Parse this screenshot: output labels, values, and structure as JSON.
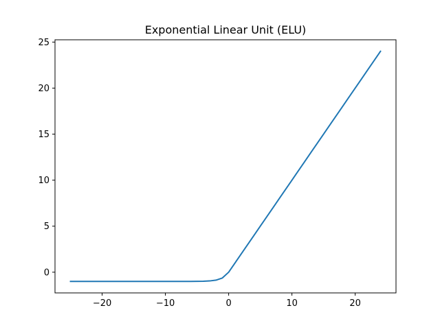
{
  "chart_data": {
    "type": "line",
    "title": "Exponential Linear Unit (ELU)",
    "xlabel": "",
    "ylabel": "",
    "xlim": [
      -27.45,
      26.45
    ],
    "ylim": [
      -2.25,
      25.25
    ],
    "xticks": [
      -20,
      -10,
      0,
      10,
      20
    ],
    "xtick_labels": [
      "−20",
      "−10",
      "0",
      "10",
      "20"
    ],
    "yticks": [
      0,
      5,
      10,
      15,
      20,
      25
    ],
    "ytick_labels": [
      "0",
      "5",
      "10",
      "15",
      "20",
      "25"
    ],
    "grid": false,
    "legend": "none",
    "series": [
      {
        "color": "#1f77b4",
        "x": [
          -25,
          -24,
          -23,
          -22,
          -21,
          -20,
          -19,
          -18,
          -17,
          -16,
          -15,
          -14,
          -13,
          -12,
          -11,
          -10,
          -9,
          -8,
          -7,
          -6,
          -5,
          -4,
          -3,
          -2,
          -1,
          0,
          1,
          2,
          3,
          4,
          5,
          6,
          7,
          8,
          9,
          10,
          11,
          12,
          13,
          14,
          15,
          16,
          17,
          18,
          19,
          20,
          21,
          22,
          23,
          24
        ],
        "y": [
          -1.0,
          -1.0,
          -1.0,
          -1.0,
          -1.0,
          -1.0,
          -1.0,
          -1.0,
          -1.0,
          -1.0,
          -1.0,
          -1.0,
          -1.0,
          -1.0,
          -1.0,
          -1.0,
          -0.9999,
          -0.9997,
          -0.9991,
          -0.9975,
          -0.9933,
          -0.9817,
          -0.9502,
          -0.8647,
          -0.6321,
          0,
          1,
          2,
          3,
          4,
          5,
          6,
          7,
          8,
          9,
          10,
          11,
          12,
          13,
          14,
          15,
          16,
          17,
          18,
          19,
          20,
          21,
          22,
          23,
          24
        ]
      }
    ]
  }
}
